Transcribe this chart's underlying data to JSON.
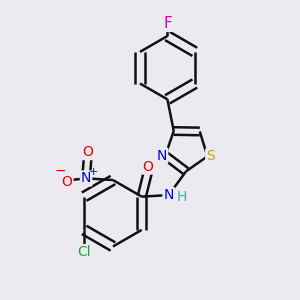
{
  "background_color": "#eaeaf0",
  "atom_colors": {
    "C": "#000000",
    "N": "#0000ee",
    "O": "#ee0000",
    "S": "#ccaa00",
    "F": "#dd00aa",
    "Cl": "#22aa22",
    "H": "#44aaaa"
  },
  "bond_color": "#111111",
  "bond_width": 1.8,
  "font_size": 10
}
